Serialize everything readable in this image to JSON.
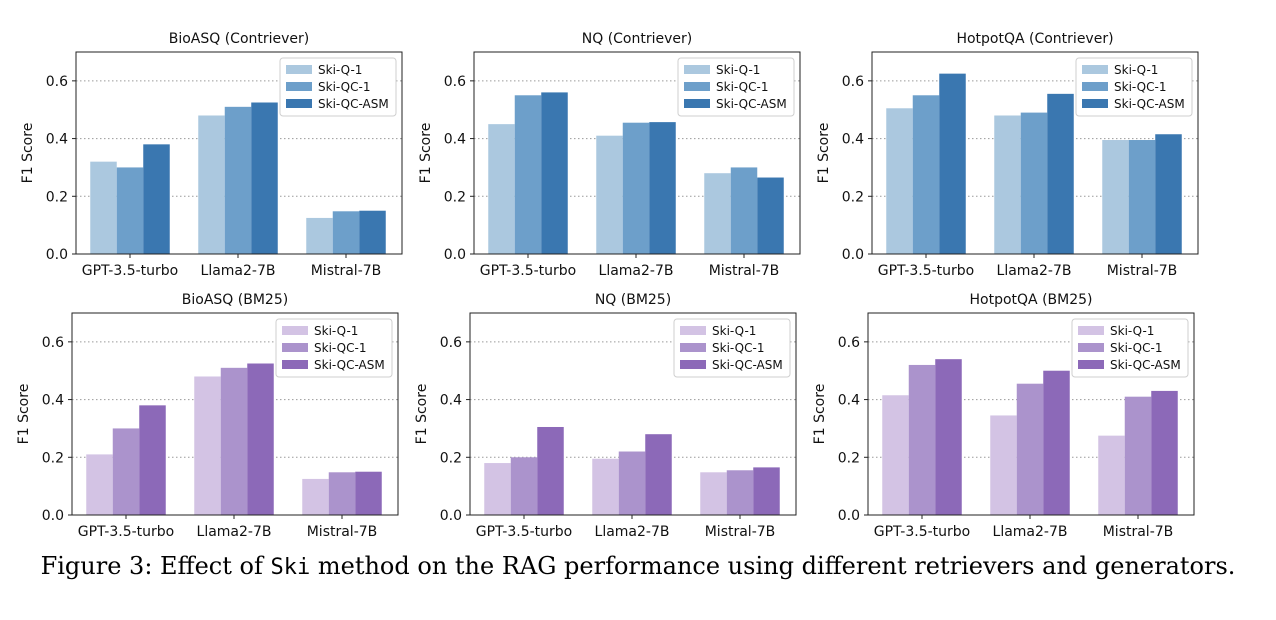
{
  "palettes": {
    "blue": [
      "#abc8df",
      "#6d9fca",
      "#3a77b0"
    ],
    "purple": [
      "#d3c3e4",
      "#ab93cc",
      "#8c69b8"
    ]
  },
  "caption": {
    "prefix": "Figure 3: Effect of ",
    "code": "Ski",
    "suffix": " method on the RAG performance using different retrievers and generators."
  },
  "chart_data": [
    {
      "type": "bar",
      "title": "BioASQ (Contriever)",
      "palette": "blue",
      "categories": [
        "GPT-3.5-turbo",
        "Llama2-7B",
        "Mistral-7B"
      ],
      "ylabel": "F1 Score",
      "ylim": [
        0,
        0.7
      ],
      "yticks": [
        "0.0",
        "0.2",
        "0.4",
        "0.6"
      ],
      "grid": "dotted horizontal",
      "legend": "top-right",
      "series": [
        {
          "name": "Ski-Q-1",
          "values": [
            0.32,
            0.48,
            0.125
          ]
        },
        {
          "name": "Ski-QC-1",
          "values": [
            0.3,
            0.51,
            0.148
          ]
        },
        {
          "name": "Ski-QC-ASM",
          "values": [
            0.38,
            0.525,
            0.15
          ]
        }
      ]
    },
    {
      "type": "bar",
      "title": "NQ (Contriever)",
      "palette": "blue",
      "categories": [
        "GPT-3.5-turbo",
        "Llama2-7B",
        "Mistral-7B"
      ],
      "ylabel": "F1 Score",
      "ylim": [
        0,
        0.7
      ],
      "yticks": [
        "0.0",
        "0.2",
        "0.4",
        "0.6"
      ],
      "grid": "dotted horizontal",
      "legend": "top-right",
      "series": [
        {
          "name": "Ski-Q-1",
          "values": [
            0.45,
            0.41,
            0.28
          ]
        },
        {
          "name": "Ski-QC-1",
          "values": [
            0.55,
            0.455,
            0.3
          ]
        },
        {
          "name": "Ski-QC-ASM",
          "values": [
            0.56,
            0.457,
            0.265
          ]
        }
      ]
    },
    {
      "type": "bar",
      "title": "HotpotQA (Contriever)",
      "palette": "blue",
      "categories": [
        "GPT-3.5-turbo",
        "Llama2-7B",
        "Mistral-7B"
      ],
      "ylabel": "F1 Score",
      "ylim": [
        0,
        0.7
      ],
      "yticks": [
        "0.0",
        "0.2",
        "0.4",
        "0.6"
      ],
      "grid": "dotted horizontal",
      "legend": "top-right",
      "series": [
        {
          "name": "Ski-Q-1",
          "values": [
            0.505,
            0.48,
            0.395
          ]
        },
        {
          "name": "Ski-QC-1",
          "values": [
            0.55,
            0.49,
            0.395
          ]
        },
        {
          "name": "Ski-QC-ASM",
          "values": [
            0.625,
            0.555,
            0.415
          ]
        }
      ]
    },
    {
      "type": "bar",
      "title": "BioASQ (BM25)",
      "palette": "purple",
      "categories": [
        "GPT-3.5-turbo",
        "Llama2-7B",
        "Mistral-7B"
      ],
      "ylabel": "F1 Score",
      "ylim": [
        0,
        0.7
      ],
      "yticks": [
        "0.0",
        "0.2",
        "0.4",
        "0.6"
      ],
      "grid": "dotted horizontal",
      "legend": "top-right",
      "series": [
        {
          "name": "Ski-Q-1",
          "values": [
            0.21,
            0.48,
            0.125
          ]
        },
        {
          "name": "Ski-QC-1",
          "values": [
            0.3,
            0.51,
            0.148
          ]
        },
        {
          "name": "Ski-QC-ASM",
          "values": [
            0.38,
            0.525,
            0.15
          ]
        }
      ]
    },
    {
      "type": "bar",
      "title": "NQ (BM25)",
      "palette": "purple",
      "categories": [
        "GPT-3.5-turbo",
        "Llama2-7B",
        "Mistral-7B"
      ],
      "ylabel": "F1 Score",
      "ylim": [
        0,
        0.7
      ],
      "yticks": [
        "0.0",
        "0.2",
        "0.4",
        "0.6"
      ],
      "grid": "dotted horizontal",
      "legend": "top-right",
      "series": [
        {
          "name": "Ski-Q-1",
          "values": [
            0.18,
            0.195,
            0.148
          ]
        },
        {
          "name": "Ski-QC-1",
          "values": [
            0.2,
            0.22,
            0.155
          ]
        },
        {
          "name": "Ski-QC-ASM",
          "values": [
            0.305,
            0.28,
            0.165
          ]
        }
      ]
    },
    {
      "type": "bar",
      "title": "HotpotQA (BM25)",
      "palette": "purple",
      "categories": [
        "GPT-3.5-turbo",
        "Llama2-7B",
        "Mistral-7B"
      ],
      "ylabel": "F1 Score",
      "ylim": [
        0,
        0.7
      ],
      "yticks": [
        "0.0",
        "0.2",
        "0.4",
        "0.6"
      ],
      "grid": "dotted horizontal",
      "legend": "top-right",
      "series": [
        {
          "name": "Ski-Q-1",
          "values": [
            0.415,
            0.345,
            0.275
          ]
        },
        {
          "name": "Ski-QC-1",
          "values": [
            0.52,
            0.455,
            0.41
          ]
        },
        {
          "name": "Ski-QC-ASM",
          "values": [
            0.54,
            0.5,
            0.43
          ]
        }
      ]
    }
  ]
}
